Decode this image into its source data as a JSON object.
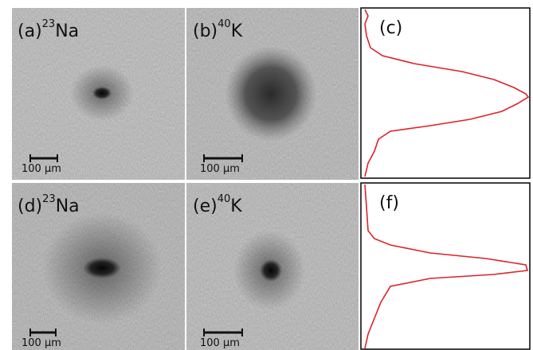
{
  "panels": [
    {
      "label": "(a)",
      "mass_number": "23",
      "element": "Na",
      "scale_bar": "100 µm"
    },
    {
      "label": "(b)",
      "mass_number": "40",
      "element": "K",
      "scale_bar": "100 µm"
    },
    {
      "label": "(c)"
    },
    {
      "label": "(d)",
      "mass_number": "23",
      "element": "Na",
      "scale_bar": "100 µm"
    },
    {
      "label": "(e)",
      "mass_number": "40",
      "element": "K",
      "scale_bar": "100 µm"
    },
    {
      "label": "(f)"
    }
  ]
}
